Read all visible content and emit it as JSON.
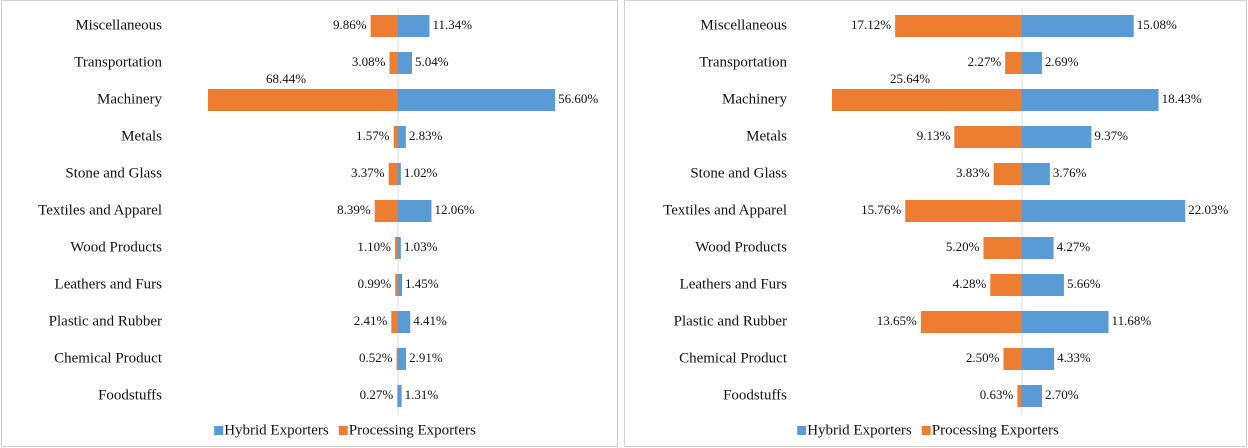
{
  "chart_data": [
    {
      "type": "bar",
      "orientation": "horizontal",
      "categories": [
        "Miscellaneous",
        "Transportation",
        "Machinery",
        "Metals",
        "Stone and Glass",
        "Textiles and Apparel",
        "Wood Products",
        "Leathers and Furs",
        "Plastic and Rubber",
        "Chemical Product",
        "Foodstuffs"
      ],
      "series": [
        {
          "name": "Hybrid Exporters",
          "color": "#5b9bd5",
          "values": [
            11.34,
            5.04,
            56.6,
            2.83,
            1.02,
            12.06,
            1.03,
            1.45,
            4.41,
            2.91,
            1.31
          ],
          "value_labels": [
            "11.34%",
            "5.04%",
            "56.60%",
            "2.83%",
            "1.02%",
            "12.06%",
            "1.03%",
            "1.45%",
            "4.41%",
            "2.91%",
            "1.31%"
          ]
        },
        {
          "name": "Processing Exporters",
          "color": "#ed7d31",
          "values": [
            9.86,
            3.08,
            68.44,
            1.57,
            3.37,
            8.39,
            1.1,
            0.99,
            2.41,
            0.52,
            0.27
          ],
          "value_labels": [
            "9.86%",
            "3.08%",
            "68.44%",
            "1.57%",
            "3.37%",
            "8.39%",
            "1.10%",
            "0.99%",
            "2.41%",
            "0.52%",
            "0.27%"
          ]
        }
      ],
      "legend": "bottom"
    },
    {
      "type": "bar",
      "orientation": "horizontal",
      "categories": [
        "Miscellaneous",
        "Transportation",
        "Machinery",
        "Metals",
        "Stone and Glass",
        "Textiles and Apparel",
        "Wood Products",
        "Leathers and Furs",
        "Plastic and Rubber",
        "Chemical Product",
        "Foodstuffs"
      ],
      "series": [
        {
          "name": "Hybrid Exporters",
          "color": "#5b9bd5",
          "values": [
            15.08,
            2.69,
            18.43,
            9.37,
            3.76,
            22.03,
            4.27,
            5.66,
            11.68,
            4.33,
            2.7
          ],
          "value_labels": [
            "15.08%",
            "2.69%",
            "18.43%",
            "9.37%",
            "3.76%",
            "22.03%",
            "4.27%",
            "5.66%",
            "11.68%",
            "4.33%",
            "2.70%"
          ]
        },
        {
          "name": "Processing Exporters",
          "color": "#ed7d31",
          "values": [
            17.12,
            2.27,
            25.64,
            9.13,
            3.83,
            15.76,
            5.2,
            4.28,
            13.65,
            2.5,
            0.63
          ],
          "value_labels": [
            "17.12%",
            "2.27%",
            "25.64%",
            "9.13%",
            "3.83%",
            "15.76%",
            "5.20%",
            "4.28%",
            "13.65%",
            "2.50%",
            "0.63%"
          ]
        }
      ],
      "legend": "bottom"
    }
  ]
}
